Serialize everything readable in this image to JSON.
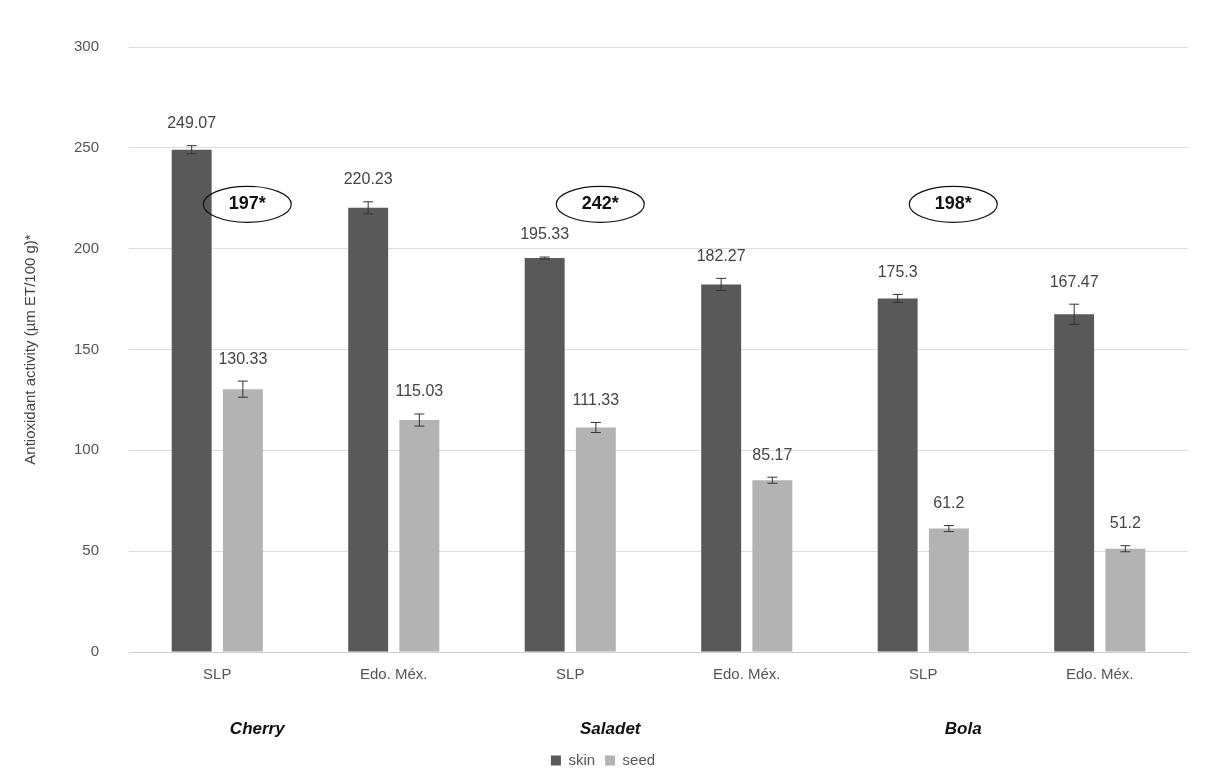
{
  "chart_data": {
    "type": "bar",
    "ylabel": "Antioxidant activity (µm ET/100 g)*",
    "categories": [
      "SLP",
      "Edo. Méx.",
      "SLP",
      "Edo. Méx.",
      "SLP",
      "Edo. Méx."
    ],
    "series": [
      {
        "name": "skin",
        "color": "#595959",
        "values": [
          249.07,
          220.23,
          195.33,
          182.27,
          175.3,
          167.47
        ],
        "errors": [
          2,
          3,
          0.5,
          3,
          2,
          5
        ]
      },
      {
        "name": "seed",
        "color": "#b3b3b3",
        "values": [
          130.33,
          115.03,
          111.33,
          85.17,
          61.2,
          51.2
        ],
        "errors": [
          4,
          3,
          2.5,
          1.5,
          1.5,
          1.5
        ]
      }
    ],
    "ylim": [
      0,
      300
    ],
    "yticks": [
      0,
      50,
      100,
      150,
      200,
      250,
      300
    ],
    "grid": "y",
    "legend": "bottom",
    "data_labels": true,
    "annotations": [
      "197*",
      "242*",
      "198*",
      "Cherry",
      "Saladet",
      "Bola"
    ]
  }
}
